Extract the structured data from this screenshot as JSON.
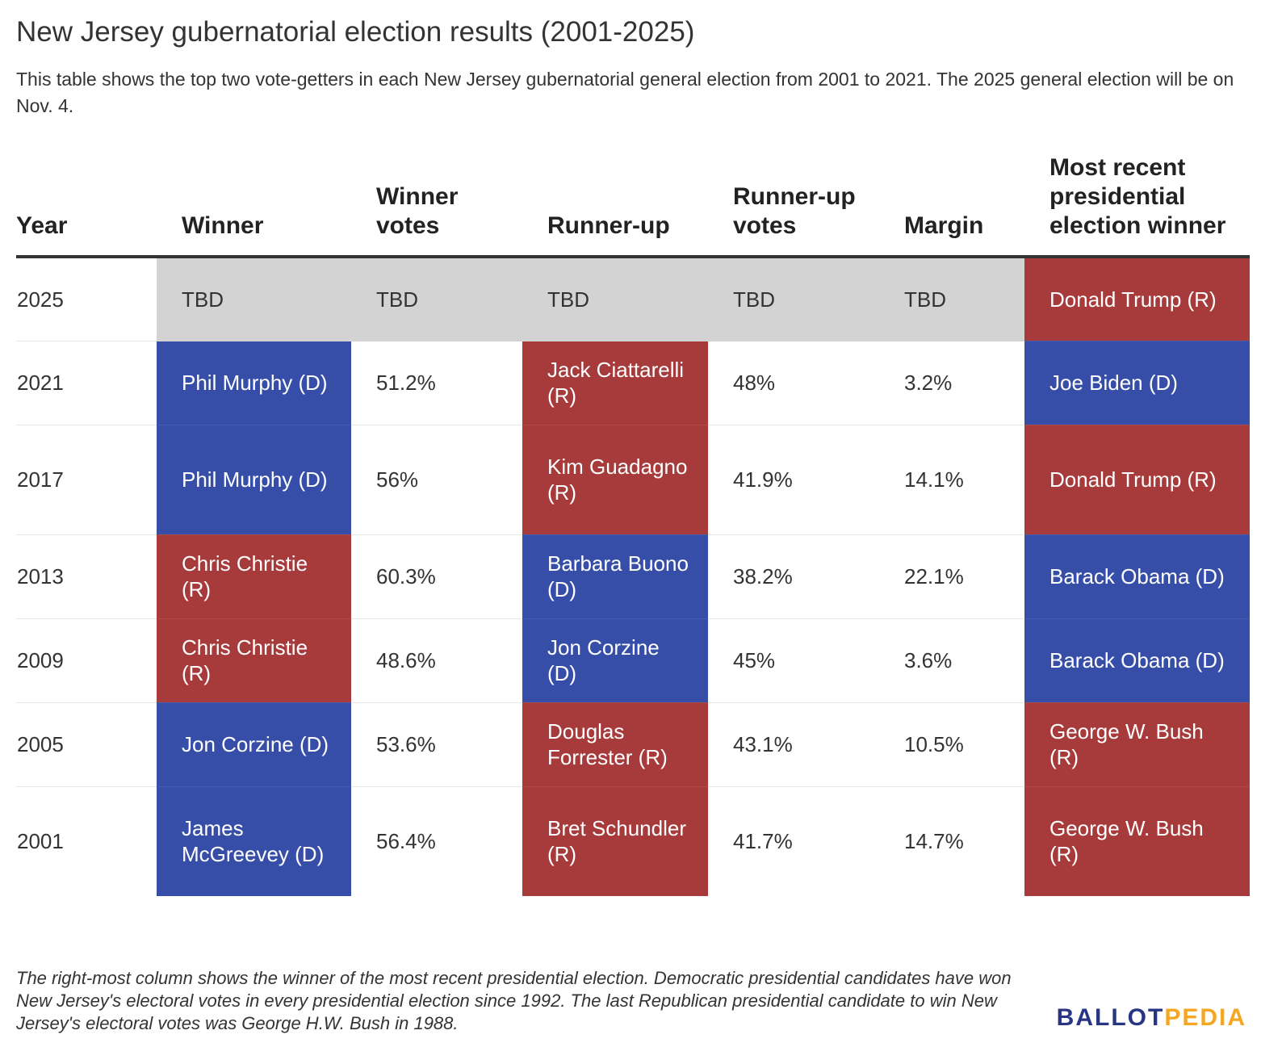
{
  "title": "New Jersey gubernatorial election results (2001-2025)",
  "subtitle": "This table shows the top two vote-getters in each New Jersey gubernatorial general election from 2001 to 2021. The 2025 general election will be on Nov. 4.",
  "note": "The right-most column shows the winner of the most recent presidential election. Democratic presidential candidates have won New Jersey's electoral votes in every presidential election since 1992. The last Republican presidential candidate to win New Jersey's electoral votes was George H.W. Bush in 1988.",
  "logo": {
    "part1": "BALLOT",
    "part2": "PEDIA"
  },
  "colors": {
    "republican": "#a73b3b",
    "democrat": "#364ea8",
    "pending": "#d3d3d3",
    "logo_blue": "#283583",
    "logo_orange": "#f5a623"
  },
  "chart_data": {
    "type": "table",
    "columns": [
      "Year",
      "Winner",
      "Winner votes",
      "Runner-up",
      "Runner-up votes",
      "Margin",
      "Most recent presidential election winner"
    ],
    "rows": [
      {
        "year": "2025",
        "winner": "TBD",
        "winner_party": "",
        "winner_votes": "TBD",
        "runner_up": "TBD",
        "runner_up_party": "",
        "runner_up_votes": "TBD",
        "margin": "TBD",
        "president": "Donald Trump (R)",
        "president_party": "R"
      },
      {
        "year": "2021",
        "winner": "Phil Murphy (D)",
        "winner_party": "D",
        "winner_votes": "51.2%",
        "runner_up": "Jack Ciattarelli (R)",
        "runner_up_party": "R",
        "runner_up_votes": "48%",
        "margin": "3.2%",
        "president": "Joe Biden (D)",
        "president_party": "D"
      },
      {
        "year": "2017",
        "winner": "Phil Murphy (D)",
        "winner_party": "D",
        "winner_votes": "56%",
        "runner_up": "Kim Guadagno (R)",
        "runner_up_party": "R",
        "runner_up_votes": "41.9%",
        "margin": "14.1%",
        "president": "Donald Trump (R)",
        "president_party": "R"
      },
      {
        "year": "2013",
        "winner": "Chris Christie (R)",
        "winner_party": "R",
        "winner_votes": "60.3%",
        "runner_up": "Barbara Buono (D)",
        "runner_up_party": "D",
        "runner_up_votes": "38.2%",
        "margin": "22.1%",
        "president": "Barack Obama (D)",
        "president_party": "D"
      },
      {
        "year": "2009",
        "winner": "Chris Christie (R)",
        "winner_party": "R",
        "winner_votes": "48.6%",
        "runner_up": "Jon Corzine (D)",
        "runner_up_party": "D",
        "runner_up_votes": "45%",
        "margin": "3.6%",
        "president": "Barack Obama (D)",
        "president_party": "D"
      },
      {
        "year": "2005",
        "winner": "Jon Corzine (D)",
        "winner_party": "D",
        "winner_votes": "53.6%",
        "runner_up": "Douglas Forrester (R)",
        "runner_up_party": "R",
        "runner_up_votes": "43.1%",
        "margin": "10.5%",
        "president": "George W. Bush (R)",
        "president_party": "R"
      },
      {
        "year": "2001",
        "winner": "James McGreevey (D)",
        "winner_party": "D",
        "winner_votes": "56.4%",
        "runner_up": "Bret Schundler (R)",
        "runner_up_party": "R",
        "runner_up_votes": "41.7%",
        "margin": "14.7%",
        "president": "George W. Bush (R)",
        "president_party": "R"
      }
    ]
  }
}
